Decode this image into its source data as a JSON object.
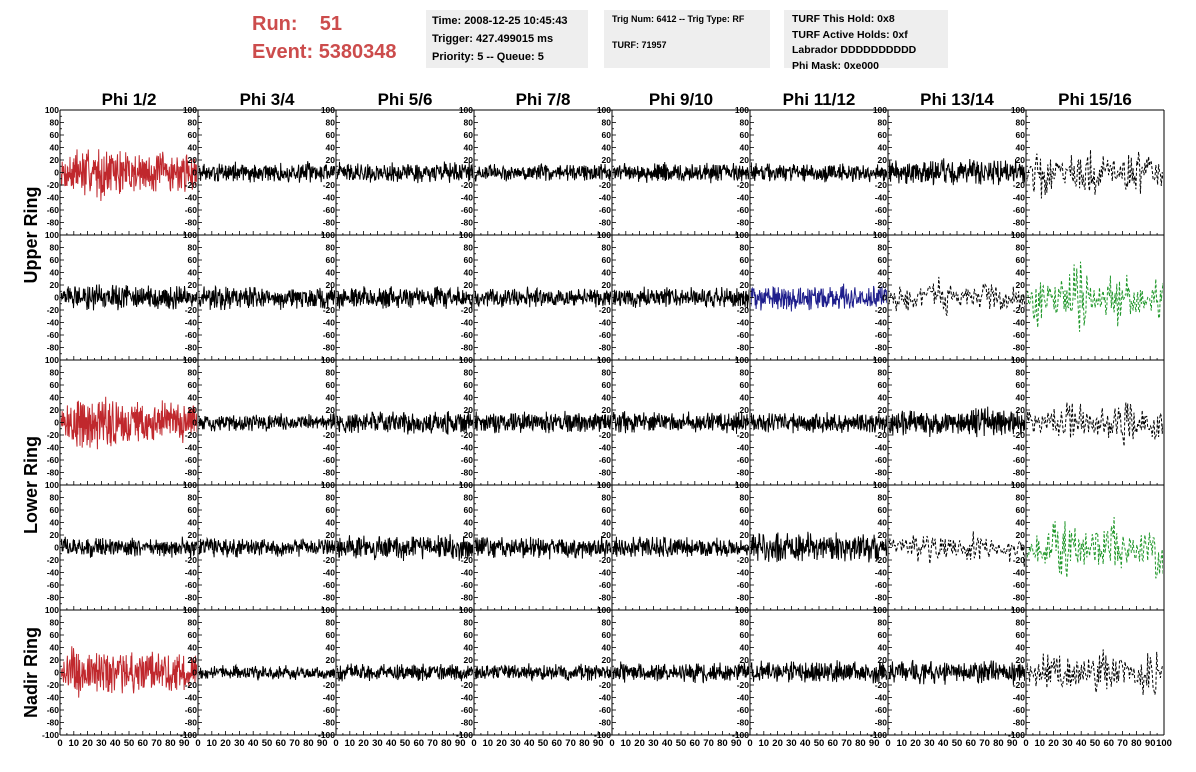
{
  "header": {
    "run_label": "Run:",
    "run_value": "51",
    "event_label": "Event:",
    "event_value": "5380348",
    "time": "Time: 2008-12-25 10:45:43",
    "trigger": "Trigger: 427.499015 ms",
    "priority": "Priority: 5 -- Queue: 5",
    "trig_num": "Trig Num: 6412 -- Trig Type: RF",
    "turf": "TURF: 71957",
    "turf_this_hold": "TURF This Hold: 0x8",
    "turf_active_holds": "TURF Active Holds: 0xf",
    "labrador": "Labrador DDDDDDDDDD",
    "phi_mask": "Phi Mask: 0xe000"
  },
  "colors": {
    "title_red": "#cc4c4c",
    "info_bg": "#eeeeee",
    "trace_black": "#000000",
    "trace_red": "#c0282d",
    "trace_blue": "#1e1e8c",
    "trace_green": "#1e9628"
  },
  "chart_data": {
    "type": "line",
    "columns": [
      "Phi 1/2",
      "Phi 3/4",
      "Phi 5/6",
      "Phi 7/8",
      "Phi 9/10",
      "Phi 11/12",
      "Phi 13/14",
      "Phi 15/16"
    ],
    "ring_labels": [
      {
        "text": "Upper Ring"
      },
      {
        "text": "Lower Ring"
      },
      {
        "text": "Nadir Ring"
      }
    ],
    "xlim": [
      0,
      100
    ],
    "ylim": [
      -100,
      100
    ],
    "x_tick_labels": [
      "0",
      "10",
      "20",
      "30",
      "40",
      "50",
      "60",
      "70",
      "80",
      "90",
      "100"
    ],
    "y_tick_labels": [
      "100",
      "80",
      "60",
      "40",
      "20",
      "0",
      "-20",
      "-40",
      "-60",
      "-80",
      "-100"
    ],
    "panels": [
      [
        {
          "color": "red",
          "style": "solid",
          "amp": 40,
          "density": 2.5
        },
        {
          "color": "black",
          "style": "solid",
          "amp": 14,
          "density": 2.5
        },
        {
          "color": "black",
          "style": "solid",
          "amp": 14,
          "density": 2.5
        },
        {
          "color": "black",
          "style": "solid",
          "amp": 12,
          "density": 2.5
        },
        {
          "color": "black",
          "style": "solid",
          "amp": 14,
          "density": 2.5
        },
        {
          "color": "black",
          "style": "solid",
          "amp": 13,
          "density": 2.5
        },
        {
          "color": "black",
          "style": "solid",
          "amp": 18,
          "density": 2.5
        },
        {
          "color": "black",
          "style": "dashed",
          "amp": 40,
          "density": 1.2
        }
      ],
      [
        {
          "color": "black",
          "style": "solid",
          "amp": 17,
          "density": 2.5
        },
        {
          "color": "black",
          "style": "solid",
          "amp": 16,
          "density": 2.5
        },
        {
          "color": "black",
          "style": "solid",
          "amp": 16,
          "density": 2.5
        },
        {
          "color": "black",
          "style": "solid",
          "amp": 14,
          "density": 2.5
        },
        {
          "color": "black",
          "style": "solid",
          "amp": 14,
          "density": 2.5
        },
        {
          "color": "blue",
          "style": "solid",
          "amp": 18,
          "density": 2.5
        },
        {
          "color": "black",
          "style": "dashed",
          "amp": 28,
          "density": 1.2
        },
        {
          "color": "green",
          "style": "dashed",
          "amp": 50,
          "density": 1.2
        }
      ],
      [
        {
          "color": "red",
          "style": "solid",
          "amp": 42,
          "density": 2.5
        },
        {
          "color": "black",
          "style": "solid",
          "amp": 12,
          "density": 2.5
        },
        {
          "color": "black",
          "style": "solid",
          "amp": 16,
          "density": 2.5
        },
        {
          "color": "black",
          "style": "solid",
          "amp": 15,
          "density": 2.5
        },
        {
          "color": "black",
          "style": "solid",
          "amp": 15,
          "density": 2.5
        },
        {
          "color": "black",
          "style": "solid",
          "amp": 14,
          "density": 2.5
        },
        {
          "color": "black",
          "style": "solid",
          "amp": 20,
          "density": 2.5
        },
        {
          "color": "black",
          "style": "dashed",
          "amp": 35,
          "density": 1.2
        }
      ],
      [
        {
          "color": "black",
          "style": "solid",
          "amp": 14,
          "density": 2.5
        },
        {
          "color": "black",
          "style": "solid",
          "amp": 13,
          "density": 2.5
        },
        {
          "color": "black",
          "style": "solid",
          "amp": 18,
          "density": 2.5
        },
        {
          "color": "black",
          "style": "solid",
          "amp": 15,
          "density": 2.5
        },
        {
          "color": "black",
          "style": "solid",
          "amp": 15,
          "density": 2.5
        },
        {
          "color": "black",
          "style": "solid",
          "amp": 20,
          "density": 2.5
        },
        {
          "color": "black",
          "style": "dashed",
          "amp": 25,
          "density": 1.2
        },
        {
          "color": "green",
          "style": "dashed",
          "amp": 45,
          "density": 1.2
        }
      ],
      [
        {
          "color": "red",
          "style": "solid",
          "amp": 38,
          "density": 2.5
        },
        {
          "color": "black",
          "style": "solid",
          "amp": 10,
          "density": 2.5
        },
        {
          "color": "black",
          "style": "solid",
          "amp": 12,
          "density": 2.5
        },
        {
          "color": "black",
          "style": "solid",
          "amp": 12,
          "density": 2.5
        },
        {
          "color": "black",
          "style": "solid",
          "amp": 14,
          "density": 2.5
        },
        {
          "color": "black",
          "style": "solid",
          "amp": 16,
          "density": 2.5
        },
        {
          "color": "black",
          "style": "solid",
          "amp": 16,
          "density": 2.5
        },
        {
          "color": "black",
          "style": "dashed",
          "amp": 38,
          "density": 1.2
        }
      ]
    ]
  }
}
